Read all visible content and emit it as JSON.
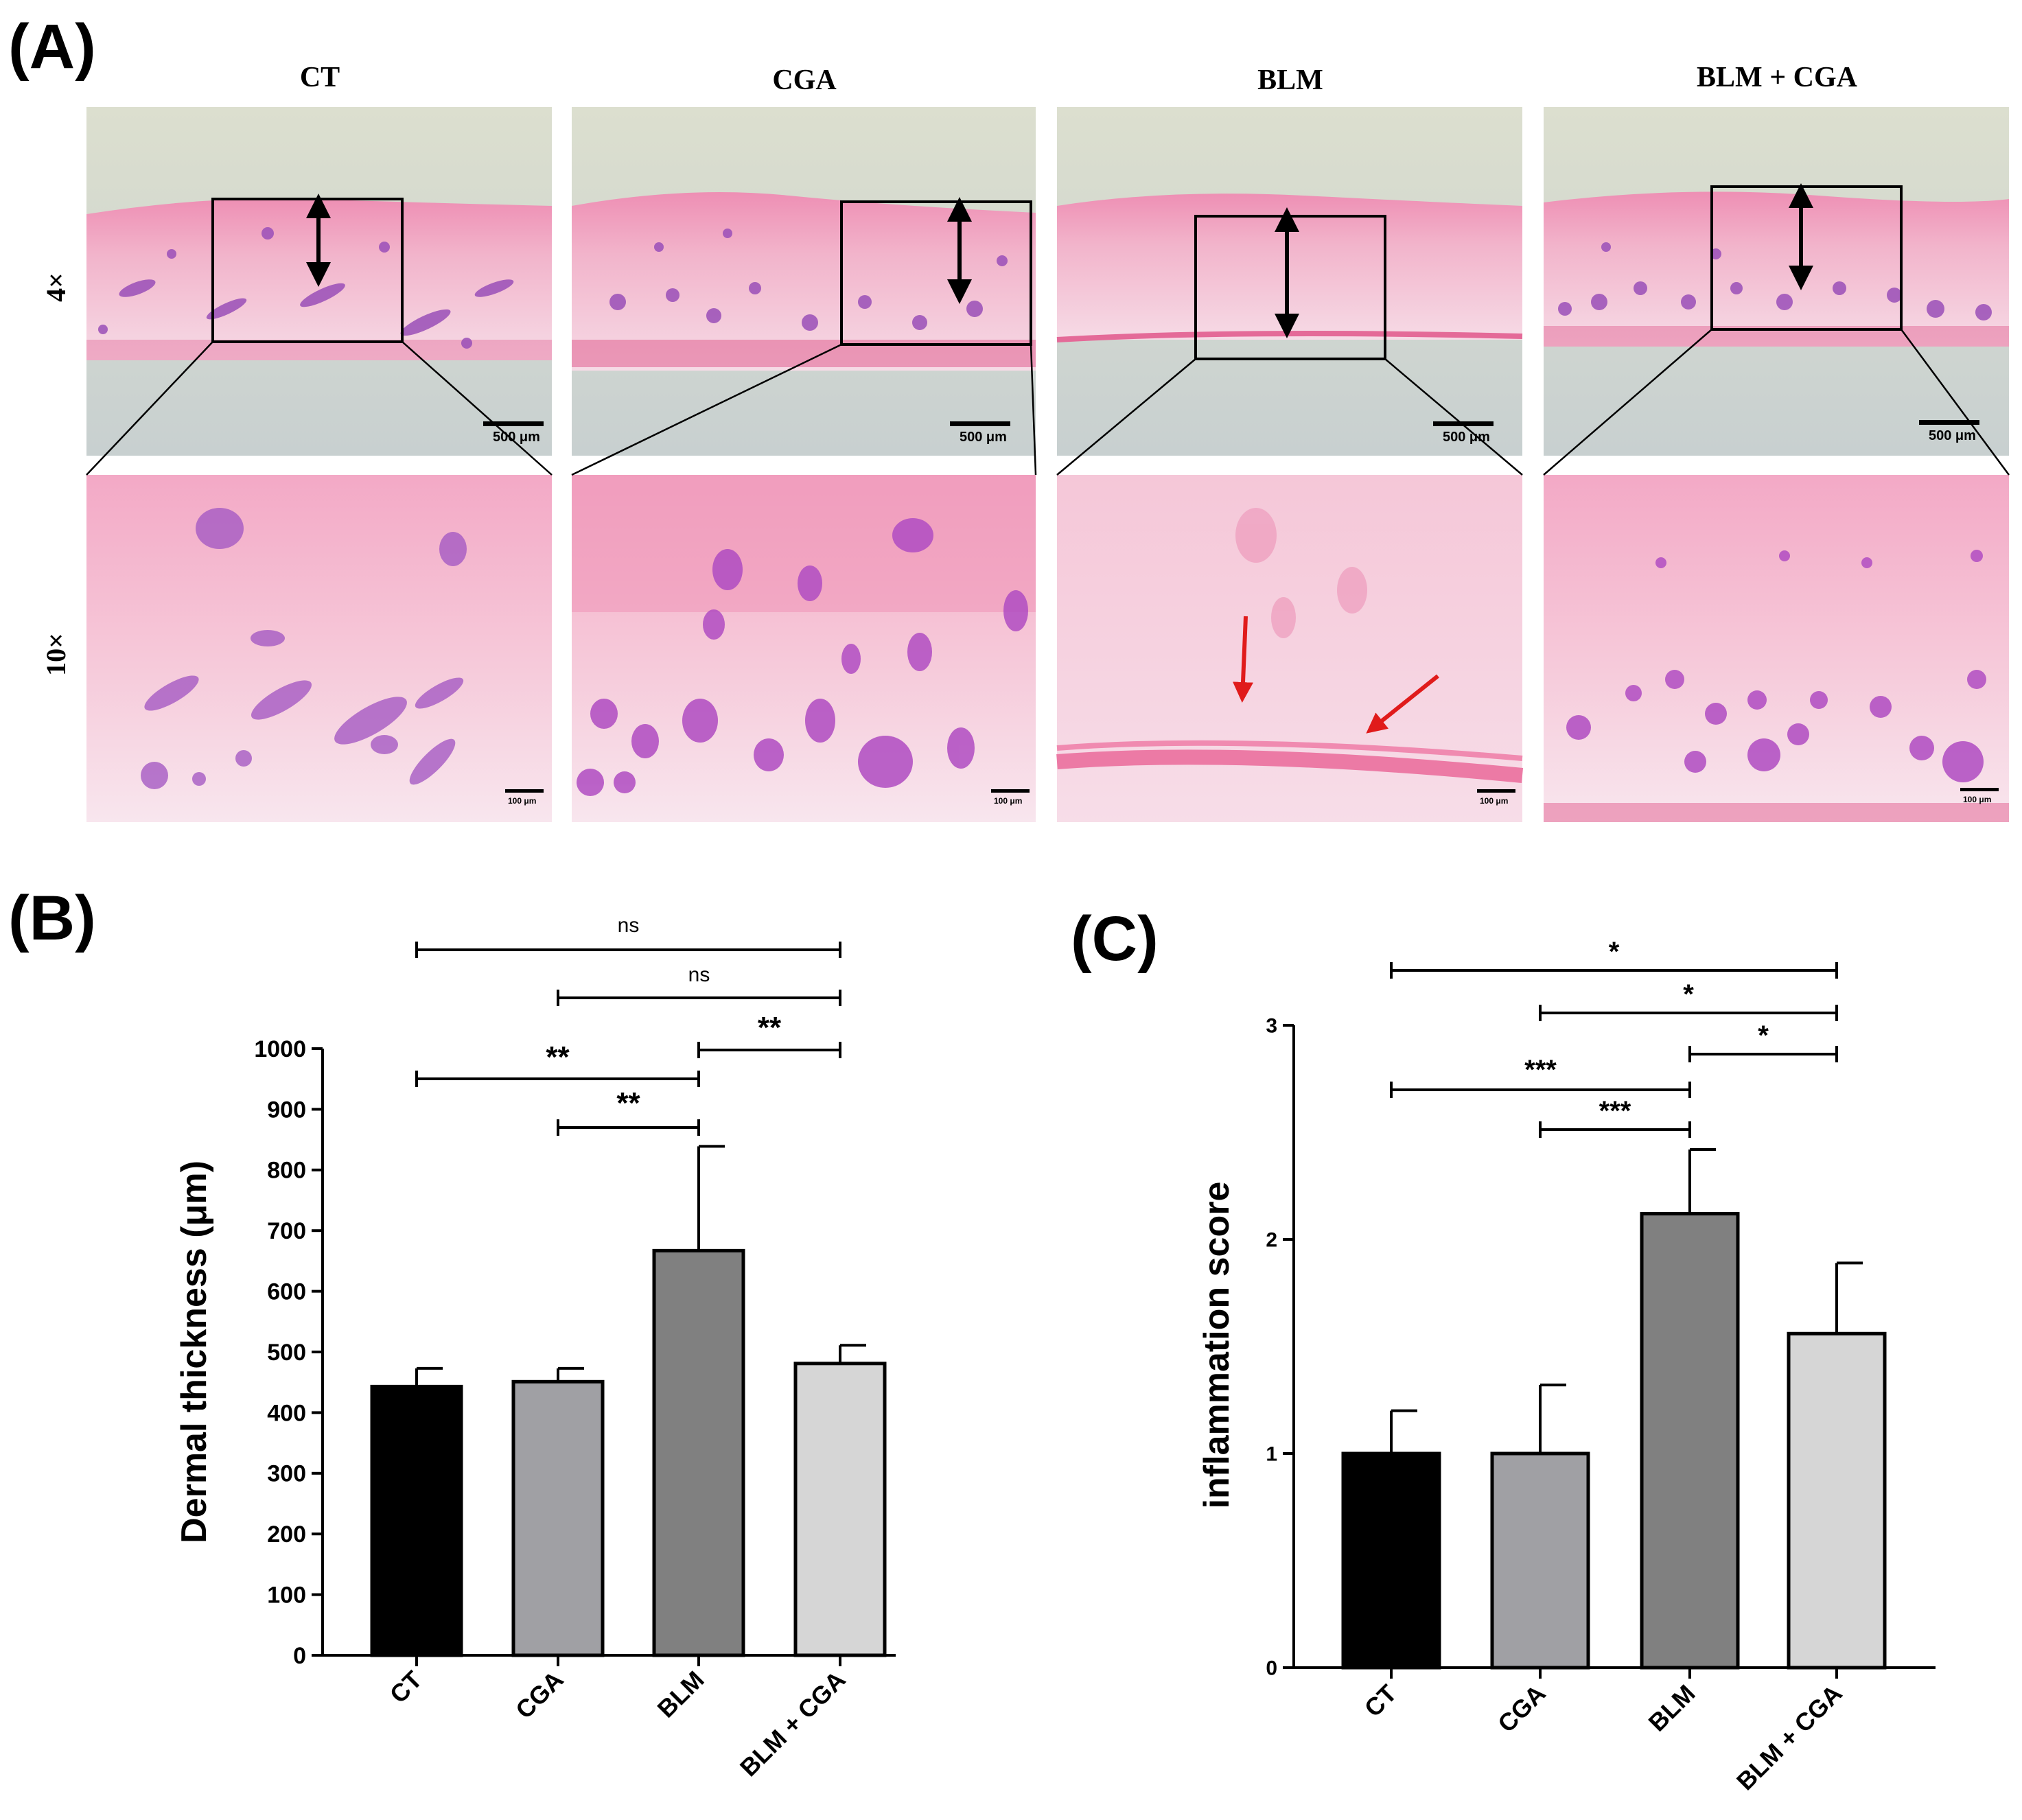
{
  "panel_a": {
    "label": "(A)",
    "groups": [
      "CT",
      "CGA",
      "BLM",
      "BLM + CGA"
    ],
    "magnifications": [
      "4×",
      "10×"
    ],
    "scale_bar_low": "500 μm",
    "scale_bar_high": "100 μm",
    "colors": {
      "background_low": "#d9dccb",
      "tissue_pink": "#f0a0bf",
      "tissue_light": "#f7d3e1",
      "follicle_purple": "#9a4fb8",
      "arrow_red": "#e01b1b"
    }
  },
  "panel_b": {
    "label": "(B)",
    "comparisons": [
      {
        "text": "ns"
      },
      {
        "text": "ns"
      },
      {
        "text": "**"
      },
      {
        "text": "**"
      },
      {
        "text": "**"
      }
    ]
  },
  "panel_c": {
    "label": "(C)",
    "comparisons": [
      {
        "text": "*"
      },
      {
        "text": "*"
      },
      {
        "text": "*"
      },
      {
        "text": "***"
      },
      {
        "text": "***"
      }
    ]
  },
  "chart_data": [
    {
      "type": "bar",
      "categories": [
        "CT",
        "CGA",
        "BLM",
        "BLM + CGA"
      ],
      "values": [
        443,
        451,
        667,
        481
      ],
      "errors": [
        30,
        22,
        172,
        30
      ],
      "colors": [
        "#000000",
        "#a0a0a4",
        "#808080",
        "#d6d6d6"
      ],
      "title": "",
      "xlabel": "",
      "ylabel": "Dermal thickness (μm)",
      "ylim": [
        0,
        1000
      ],
      "yticks": [
        0,
        100,
        200,
        300,
        400,
        500,
        600,
        700,
        800,
        900,
        1000
      ]
    },
    {
      "type": "bar",
      "categories": [
        "CT",
        "CGA",
        "BLM",
        "BLM + CGA"
      ],
      "values": [
        1.0,
        1.0,
        2.12,
        1.56
      ],
      "errors": [
        0.2,
        0.32,
        0.3,
        0.33
      ],
      "colors": [
        "#000000",
        "#a0a0a4",
        "#808080",
        "#d6d6d6"
      ],
      "title": "",
      "xlabel": "",
      "ylabel": "inflammation score",
      "ylim": [
        0,
        3
      ],
      "yticks": [
        0,
        1,
        2,
        3
      ]
    }
  ]
}
